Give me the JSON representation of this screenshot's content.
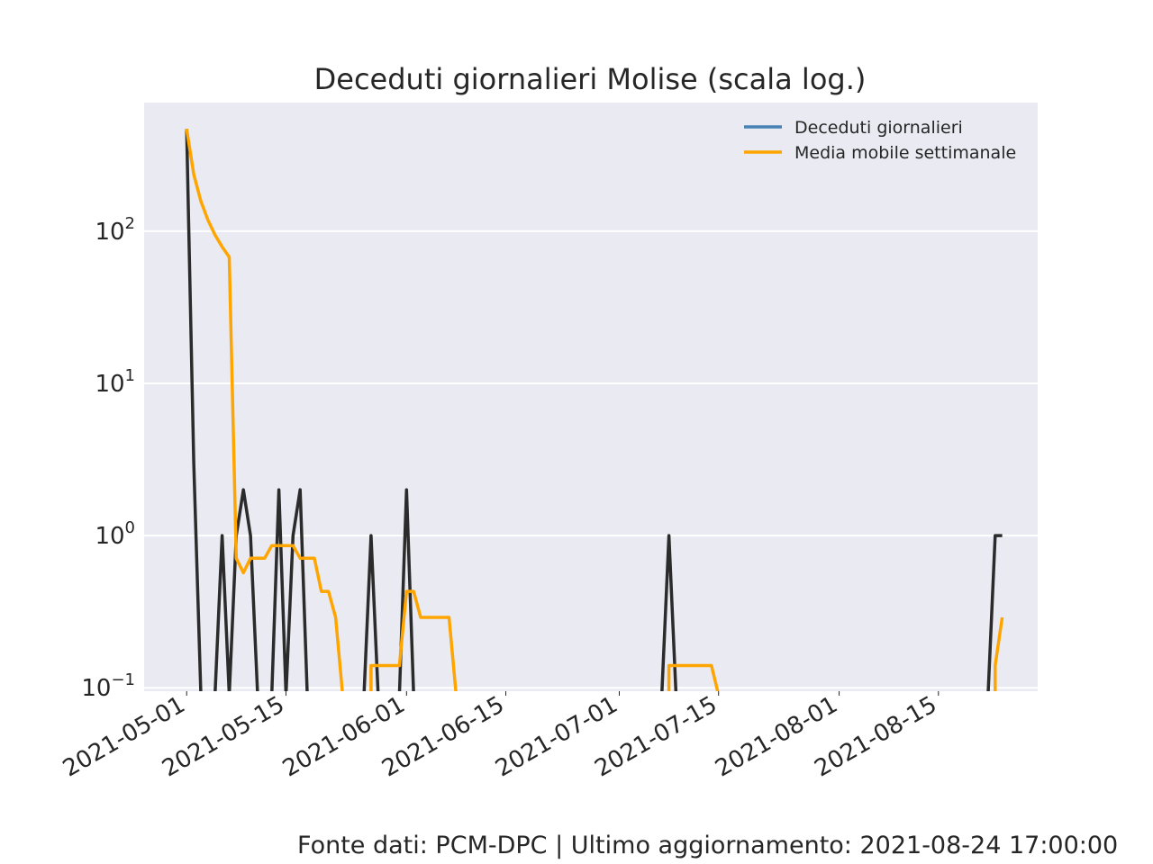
{
  "chart_data": {
    "type": "line",
    "title": "Deceduti giornalieri Molise (scala log.)",
    "yscale": "log",
    "ylim": [
      0.095,
      700
    ],
    "xlim": [
      "2021-04-25",
      "2021-08-29"
    ],
    "grid": true,
    "legend_position": "upper-right",
    "y_ticks": [
      {
        "value": 0.1,
        "base": "10",
        "exp": "−1"
      },
      {
        "value": 1,
        "base": "10",
        "exp": "0"
      },
      {
        "value": 10,
        "base": "10",
        "exp": "1"
      },
      {
        "value": 100,
        "base": "10",
        "exp": "2"
      }
    ],
    "x_ticks": [
      "2021-05-01",
      "2021-05-15",
      "2021-06-01",
      "2021-06-15",
      "2021-07-01",
      "2021-07-15",
      "2021-08-01",
      "2021-08-15"
    ],
    "series": [
      {
        "name": "Deceduti giornalieri",
        "legend_color": "#4682b4",
        "color": "#2b2b2b",
        "points": [
          [
            "2021-05-01",
            470
          ],
          [
            "2021-05-02",
            3
          ],
          [
            "2021-05-03",
            0
          ],
          [
            "2021-05-04",
            0
          ],
          [
            "2021-05-05",
            0
          ],
          [
            "2021-05-06",
            1
          ],
          [
            "2021-05-07",
            0
          ],
          [
            "2021-05-08",
            1
          ],
          [
            "2021-05-09",
            2
          ],
          [
            "2021-05-10",
            1
          ],
          [
            "2021-05-11",
            0
          ],
          [
            "2021-05-12",
            0
          ],
          [
            "2021-05-13",
            0
          ],
          [
            "2021-05-14",
            2
          ],
          [
            "2021-05-15",
            0
          ],
          [
            "2021-05-16",
            1
          ],
          [
            "2021-05-17",
            2
          ],
          [
            "2021-05-18",
            0
          ],
          [
            "2021-05-26",
            0
          ],
          [
            "2021-05-27",
            1
          ],
          [
            "2021-05-28",
            0
          ],
          [
            "2021-05-31",
            0
          ],
          [
            "2021-06-01",
            2
          ],
          [
            "2021-06-02",
            0
          ],
          [
            "2021-07-07",
            0
          ],
          [
            "2021-07-08",
            1
          ],
          [
            "2021-07-09",
            0
          ],
          [
            "2021-08-22",
            0
          ],
          [
            "2021-08-23",
            1
          ],
          [
            "2021-08-24",
            1
          ]
        ]
      },
      {
        "name": "Media mobile settimanale",
        "color": "#ffa500",
        "points": [
          [
            "2021-05-01",
            470
          ],
          [
            "2021-05-02",
            236.5
          ],
          [
            "2021-05-03",
            157.7
          ],
          [
            "2021-05-04",
            118.3
          ],
          [
            "2021-05-05",
            94.6
          ],
          [
            "2021-05-06",
            79
          ],
          [
            "2021-05-07",
            67.7
          ],
          [
            "2021-05-08",
            0.71
          ],
          [
            "2021-05-09",
            0.57
          ],
          [
            "2021-05-10",
            0.71
          ],
          [
            "2021-05-11",
            0.71
          ],
          [
            "2021-05-12",
            0.71
          ],
          [
            "2021-05-13",
            0.86
          ],
          [
            "2021-05-14",
            0.86
          ],
          [
            "2021-05-15",
            0.86
          ],
          [
            "2021-05-16",
            0.86
          ],
          [
            "2021-05-17",
            0.71
          ],
          [
            "2021-05-18",
            0.71
          ],
          [
            "2021-05-19",
            0.71
          ],
          [
            "2021-05-20",
            0.43
          ],
          [
            "2021-05-21",
            0.43
          ],
          [
            "2021-05-22",
            0.29
          ],
          [
            "2021-05-23",
            0
          ],
          [
            "2021-05-27",
            0
          ],
          [
            "2021-05-27",
            0.14
          ],
          [
            "2021-05-28",
            0.14
          ],
          [
            "2021-05-29",
            0.14
          ],
          [
            "2021-05-30",
            0.14
          ],
          [
            "2021-05-31",
            0.14
          ],
          [
            "2021-06-01",
            0.43
          ],
          [
            "2021-06-02",
            0.43
          ],
          [
            "2021-06-03",
            0.29
          ],
          [
            "2021-06-04",
            0.29
          ],
          [
            "2021-06-05",
            0.29
          ],
          [
            "2021-06-06",
            0.29
          ],
          [
            "2021-06-07",
            0.29
          ],
          [
            "2021-06-08",
            0
          ],
          [
            "2021-07-08",
            0
          ],
          [
            "2021-07-08",
            0.14
          ],
          [
            "2021-07-09",
            0.14
          ],
          [
            "2021-07-10",
            0.14
          ],
          [
            "2021-07-11",
            0.14
          ],
          [
            "2021-07-12",
            0.14
          ],
          [
            "2021-07-13",
            0.14
          ],
          [
            "2021-07-14",
            0.14
          ],
          [
            "2021-07-15",
            0
          ],
          [
            "2021-08-23",
            0
          ],
          [
            "2021-08-23",
            0.14
          ],
          [
            "2021-08-24",
            0.29
          ]
        ]
      }
    ]
  },
  "footer": "Fonte dati: PCM-DPC | Ultimo aggiornamento: 2021-08-24 17:00:00"
}
